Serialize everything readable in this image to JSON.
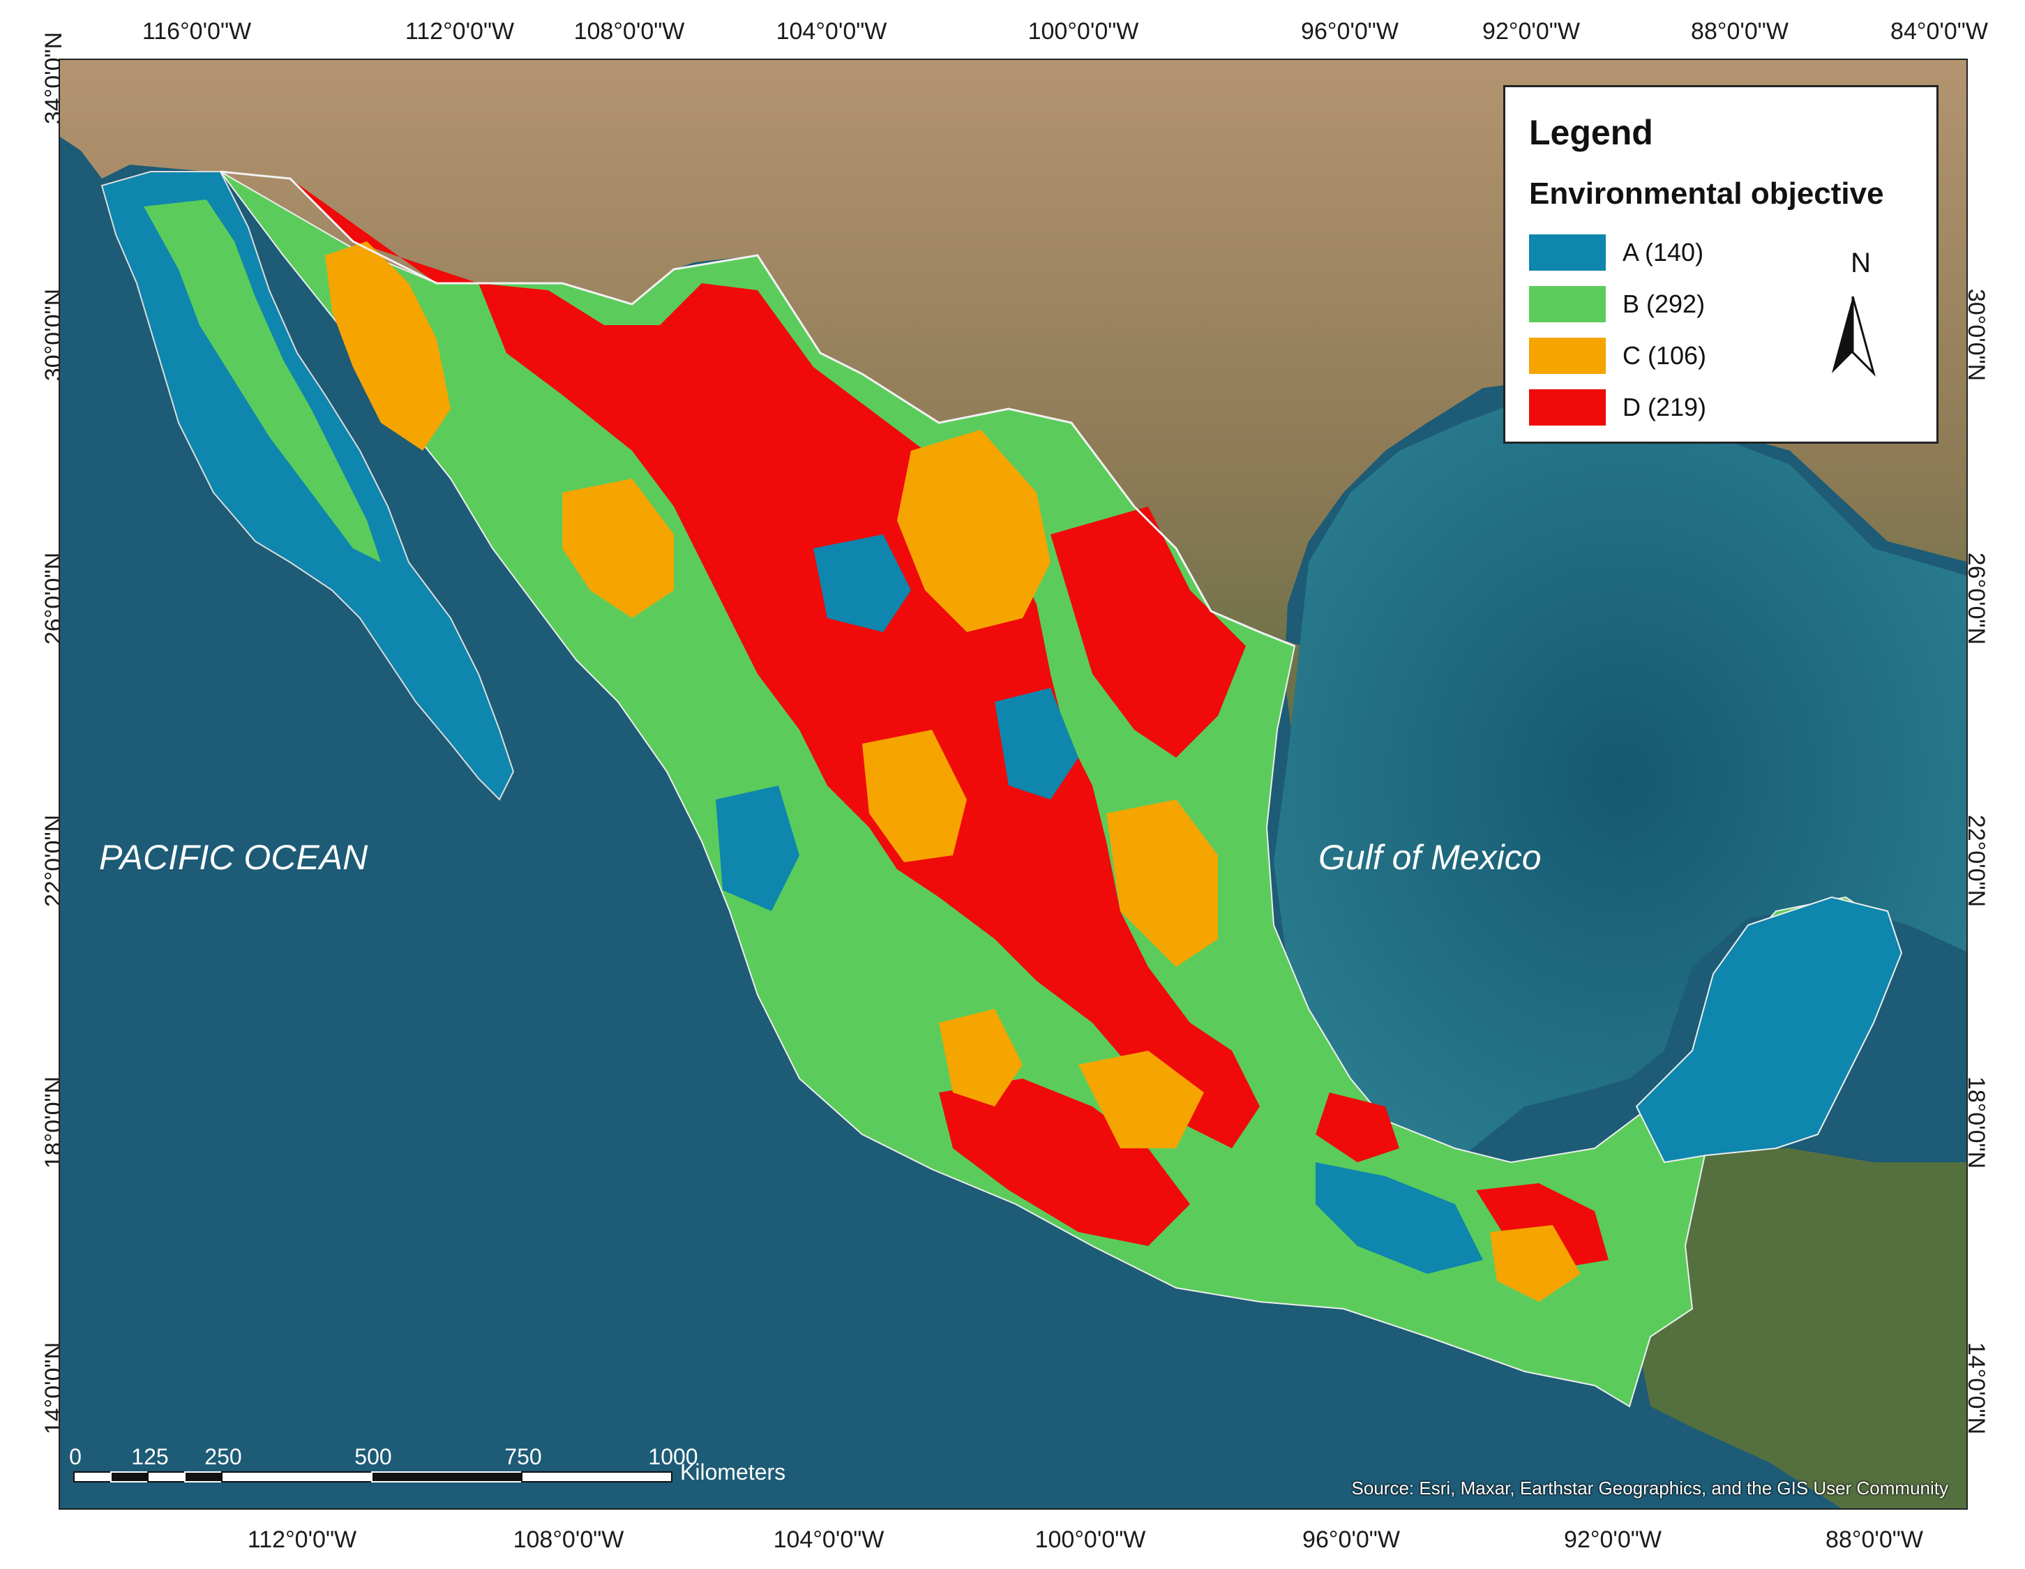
{
  "graticule": {
    "top_longitudes": [
      "116°0'0\"W",
      "112°0'0\"W",
      "108°0'0\"W",
      "104°0'0\"W",
      "100°0'0\"W",
      "96°0'0\"W",
      "92°0'0\"W",
      "88°0'0\"W",
      "84°0'0\"W"
    ],
    "bottom_longitudes": [
      "112°0'0\"W",
      "108°0'0\"W",
      "104°0'0\"W",
      "100°0'0\"W",
      "96°0'0\"W",
      "92°0'0\"W",
      "88°0'0\"W"
    ],
    "left_latitudes": [
      "34°0'0\"N",
      "30°0'0\"N",
      "26°0'0\"N",
      "22°0'0\"N",
      "18°0'0\"N",
      "14°0'0\"N"
    ],
    "right_latitudes": [
      "30°0'0\"N",
      "26°0'0\"N",
      "22°0'0\"N",
      "18°0'0\"N",
      "14°0'0\"N"
    ]
  },
  "legend": {
    "title": "Legend",
    "subtitle": "Environmental objective",
    "items": [
      {
        "label": "A (140)",
        "color": "#0e86ad"
      },
      {
        "label": "B (292)",
        "color": "#5bcc5b"
      },
      {
        "label": "C (106)",
        "color": "#f6a400"
      },
      {
        "label": "D (219)",
        "color": "#f00a0a"
      }
    ]
  },
  "north_arrow": {
    "label": "N"
  },
  "labels": {
    "pacific": "PACIFIC OCEAN",
    "gulf": "Gulf of Mexico"
  },
  "scale_bar": {
    "ticks": [
      "0",
      "125",
      "250",
      "500",
      "750",
      "1000"
    ],
    "unit": "Kilometers"
  },
  "source": "Source: Esri, Maxar, Earthstar Geographics, and the GIS User Community",
  "colors": {
    "ocean": "#1f5f78",
    "land_north": "#a98a62",
    "land_south": "#4f6b3a"
  }
}
